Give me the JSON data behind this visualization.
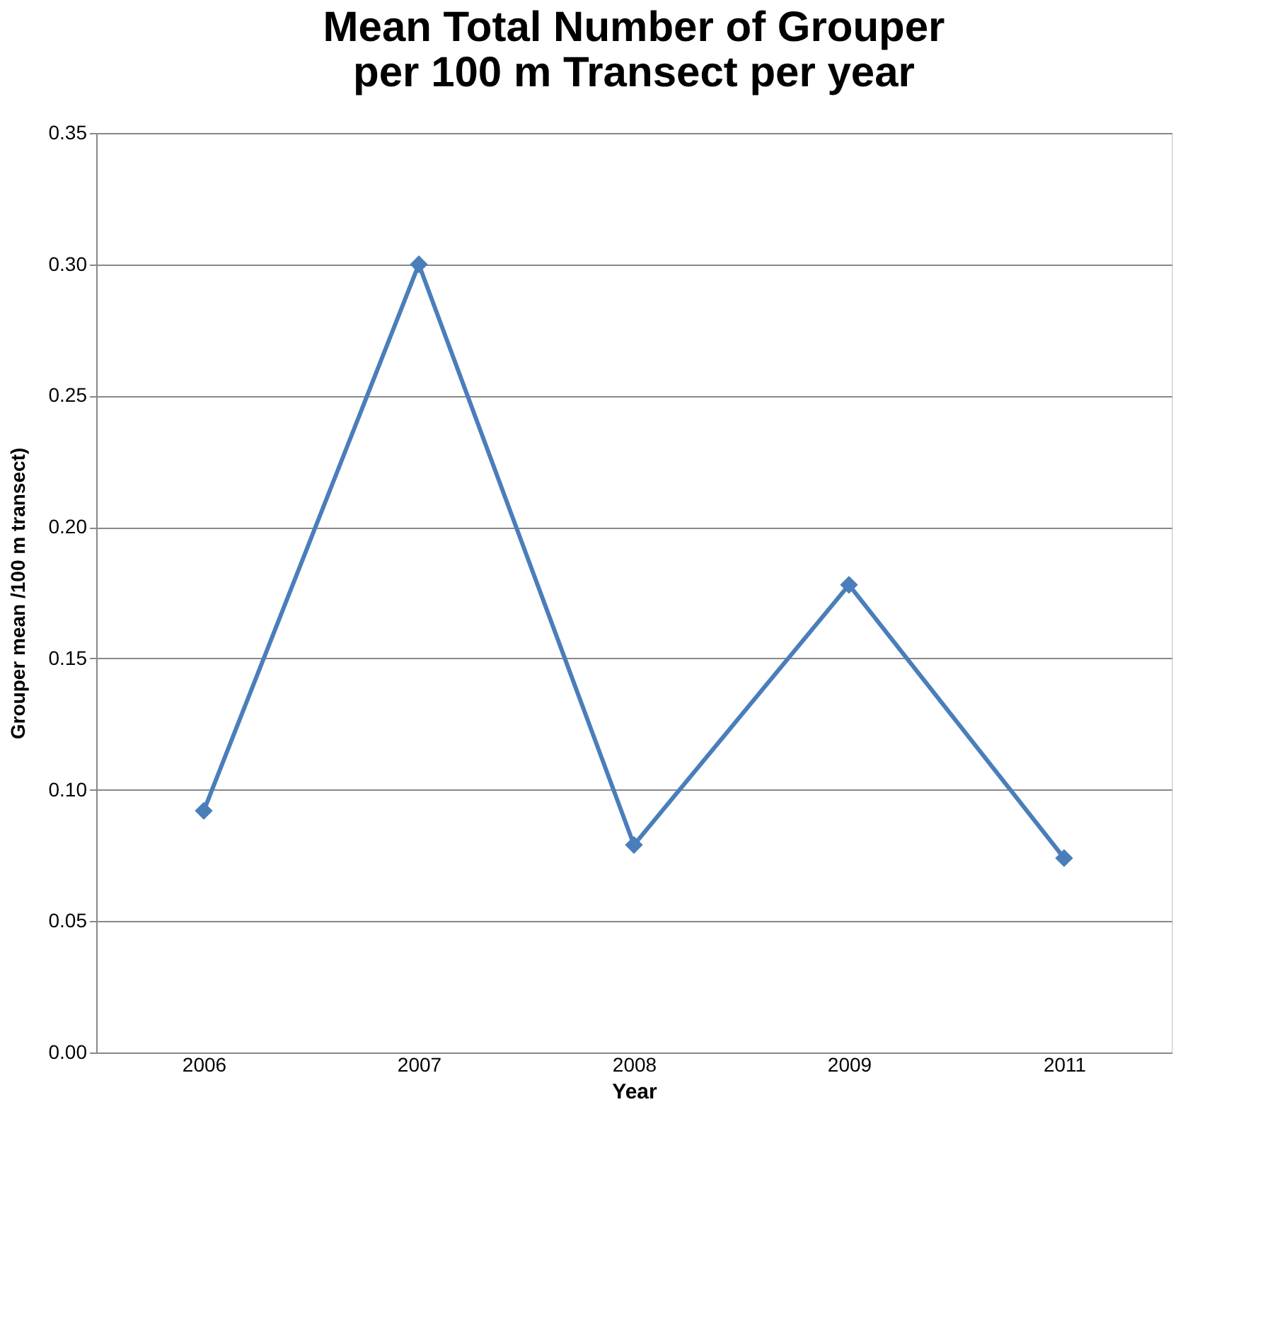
{
  "chart_data": {
    "type": "line",
    "title": [
      "Mean Total Number of Grouper",
      "per 100 m Transect per year"
    ],
    "xlabel": "Year",
    "ylabel": "Grouper mean /100 m transect)",
    "categories": [
      "2006",
      "2007",
      "2008",
      "2009",
      "2011"
    ],
    "series": [
      {
        "color": "#4a7ebb",
        "values": [
          0.092,
          0.3,
          0.079,
          0.178,
          0.074
        ]
      }
    ],
    "ylim": [
      0,
      0.35
    ],
    "yticks": [
      {
        "value": 0,
        "label": "0.00"
      },
      {
        "value": 0.05,
        "label": "0.05"
      },
      {
        "value": 0.1,
        "label": "0.10"
      },
      {
        "value": 0.15,
        "label": "0.15"
      },
      {
        "value": 0.2,
        "label": "0.20"
      },
      {
        "value": 0.25,
        "label": "0.25"
      },
      {
        "value": 0.3,
        "label": "0.30"
      },
      {
        "value": 0.35,
        "label": "0.35"
      }
    ],
    "grid": "y",
    "legend": false,
    "marker": "diamond",
    "line_style": "solid"
  }
}
